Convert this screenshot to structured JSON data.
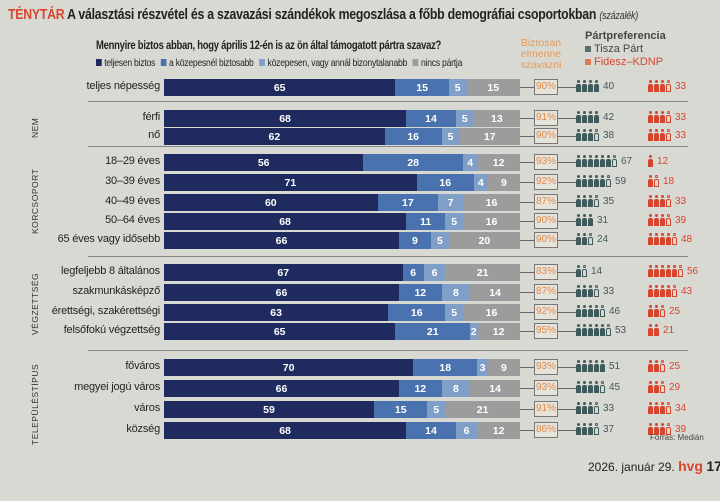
{
  "header": {
    "kicker": "TÉNYTÁR",
    "title": "A választási részvétel és a szavazási szándékok megoszlása a főbb demográfiai csoportokban",
    "unit": "(százalék)"
  },
  "question": "Mennyire biztos abban, hogy április 12-én is az ön által támogatott pártra szavaz?",
  "turnout_header": [
    "Biztosan",
    "elmenne",
    "szavazni"
  ],
  "pref_header": "Pártpreferencia",
  "colors": {
    "teljesen_biztos": "#1f2a5e",
    "kozepesnel_biztosabb": "#4a72ae",
    "kozepesen": "#7f9fc9",
    "nincs_partja": "#9c9c9c",
    "tisza": "#3f5a5a",
    "fidesz": "#d6462f",
    "turnout": "#e08a4a"
  },
  "chart_data": {
    "type": "bar",
    "stacked": true,
    "orientation": "horizontal",
    "series_names": [
      "teljesen biztos",
      "a közepesnél biztosabb",
      "közepesen, vagy annál bizonytalanabb",
      "nincs pártja"
    ],
    "pref_names": [
      "Tisza Párt",
      "Fidesz–KDNP"
    ],
    "groups": [
      {
        "name": "",
        "rows": [
          {
            "label": "teljes népesség",
            "values": [
              65,
              15,
              5,
              15
            ],
            "turnout": "90%",
            "tisza": 40,
            "fidesz": 33
          }
        ]
      },
      {
        "name": "NEM",
        "rows": [
          {
            "label": "férfi",
            "values": [
              68,
              14,
              5,
              13
            ],
            "turnout": "91%",
            "tisza": 42,
            "fidesz": 33
          },
          {
            "label": "nő",
            "values": [
              62,
              16,
              5,
              17
            ],
            "turnout": "90%",
            "tisza": 38,
            "fidesz": 33
          }
        ]
      },
      {
        "name": "KORCSOPORT",
        "rows": [
          {
            "label": "18–29 éves",
            "values": [
              56,
              28,
              4,
              12
            ],
            "turnout": "93%",
            "tisza": 67,
            "fidesz": 12
          },
          {
            "label": "30–39 éves",
            "values": [
              71,
              16,
              4,
              9
            ],
            "turnout": "92%",
            "tisza": 59,
            "fidesz": 18
          },
          {
            "label": "40–49 éves",
            "values": [
              60,
              17,
              7,
              16
            ],
            "turnout": "87%",
            "tisza": 35,
            "fidesz": 33
          },
          {
            "label": "50–64 éves",
            "values": [
              68,
              11,
              5,
              16
            ],
            "turnout": "90%",
            "tisza": 31,
            "fidesz": 39
          },
          {
            "label": "65 éves vagy idősebb",
            "values": [
              66,
              9,
              5,
              20
            ],
            "turnout": "90%",
            "tisza": 24,
            "fidesz": 48
          }
        ]
      },
      {
        "name": "VÉGZETTSÉG",
        "rows": [
          {
            "label": "legfeljebb 8 általános",
            "values": [
              67,
              6,
              6,
              21
            ],
            "turnout": "83%",
            "tisza": 14,
            "fidesz": 56
          },
          {
            "label": "szakmunkásképző",
            "values": [
              66,
              12,
              8,
              14
            ],
            "turnout": "87%",
            "tisza": 33,
            "fidesz": 43
          },
          {
            "label": "érettségi, szakérettségi",
            "values": [
              63,
              16,
              5,
              16
            ],
            "turnout": "92%",
            "tisza": 46,
            "fidesz": 25
          },
          {
            "label": "felsőfokú végzettség",
            "values": [
              65,
              21,
              2,
              12
            ],
            "turnout": "95%",
            "tisza": 53,
            "fidesz": 21
          }
        ]
      },
      {
        "name": "TELEPÜLÉSTÍPUS",
        "rows": [
          {
            "label": "főváros",
            "values": [
              70,
              18,
              3,
              9
            ],
            "turnout": "93%",
            "tisza": 51,
            "fidesz": 25
          },
          {
            "label": "megyei jogú város",
            "values": [
              66,
              12,
              8,
              14
            ],
            "turnout": "93%",
            "tisza": 45,
            "fidesz": 29
          },
          {
            "label": "város",
            "values": [
              59,
              15,
              5,
              21
            ],
            "turnout": "91%",
            "tisza": 33,
            "fidesz": 34
          },
          {
            "label": "község",
            "values": [
              68,
              14,
              6,
              12
            ],
            "turnout": "86%",
            "tisza": 37,
            "fidesz": 39
          }
        ]
      }
    ]
  },
  "source": "Forrás: Medián",
  "footer": {
    "date": "2026. január 29.",
    "brand": "hvg",
    "page": "17"
  }
}
